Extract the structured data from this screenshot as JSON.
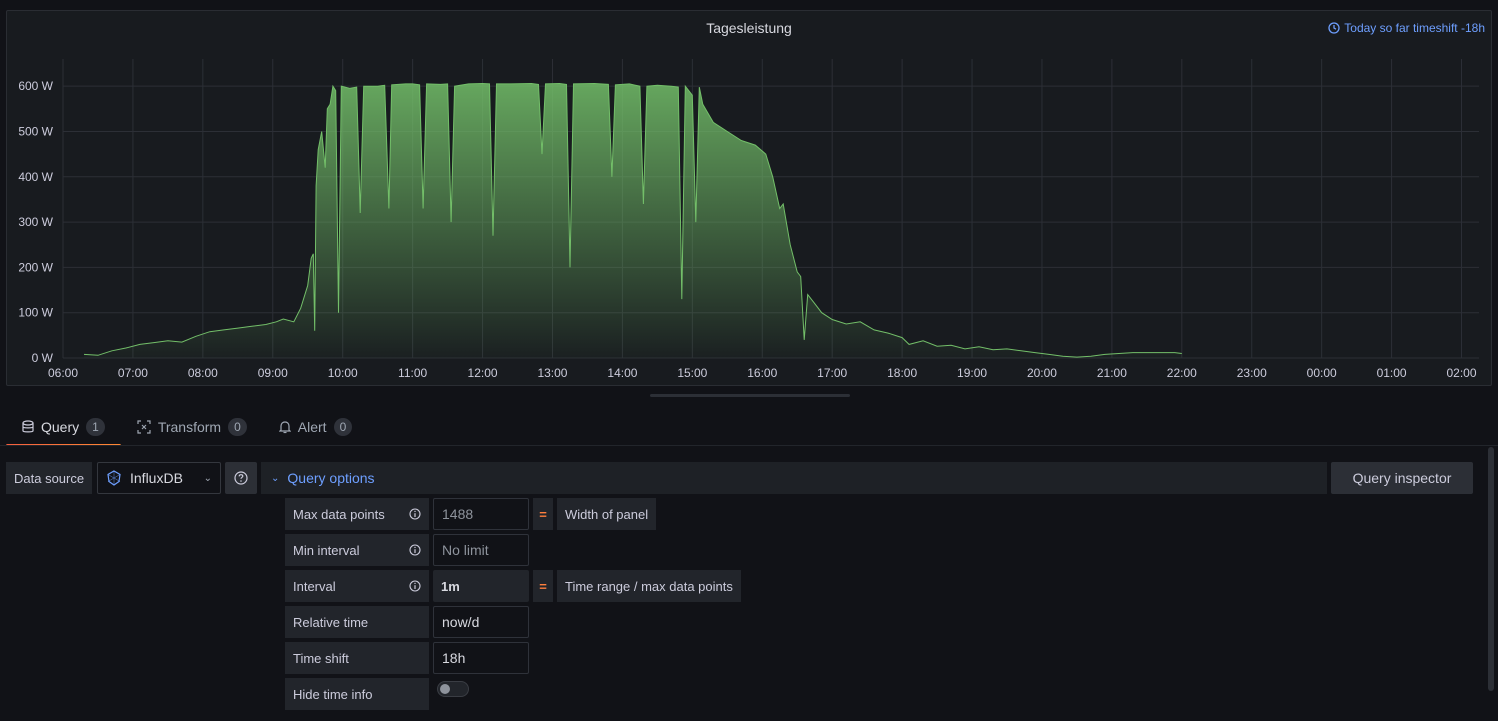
{
  "panel": {
    "title": "Tagesleistung",
    "time_info": "Today so far timeshift -18h"
  },
  "chart_data": {
    "type": "area",
    "title": "Tagesleistung",
    "xlabel": "",
    "ylabel": "",
    "x_ticks": [
      "06:00",
      "07:00",
      "08:00",
      "09:00",
      "10:00",
      "11:00",
      "12:00",
      "13:00",
      "14:00",
      "15:00",
      "16:00",
      "17:00",
      "18:00",
      "19:00",
      "20:00",
      "21:00",
      "22:00",
      "23:00",
      "00:00",
      "01:00",
      "02:00"
    ],
    "y_ticks": [
      "0 W",
      "100 W",
      "200 W",
      "300 W",
      "400 W",
      "500 W",
      "600 W"
    ],
    "ylim": [
      0,
      660
    ],
    "xlim_hours": [
      6.0,
      26.25
    ],
    "grid": true,
    "legend": "none",
    "series_color": "#73bf69",
    "series": [
      {
        "values": [
          [
            6.3,
            8
          ],
          [
            6.5,
            6
          ],
          [
            6.7,
            16
          ],
          [
            6.9,
            22
          ],
          [
            7.1,
            30
          ],
          [
            7.3,
            34
          ],
          [
            7.5,
            38
          ],
          [
            7.7,
            35
          ],
          [
            7.9,
            48
          ],
          [
            8.1,
            58
          ],
          [
            8.3,
            62
          ],
          [
            8.5,
            66
          ],
          [
            8.7,
            70
          ],
          [
            8.9,
            74
          ],
          [
            9.05,
            80
          ],
          [
            9.15,
            86
          ],
          [
            9.3,
            80
          ],
          [
            9.4,
            110
          ],
          [
            9.5,
            160
          ],
          [
            9.55,
            220
          ],
          [
            9.58,
            230
          ],
          [
            9.6,
            60
          ],
          [
            9.62,
            380
          ],
          [
            9.65,
            460
          ],
          [
            9.7,
            500
          ],
          [
            9.75,
            420
          ],
          [
            9.78,
            550
          ],
          [
            9.82,
            560
          ],
          [
            9.86,
            600
          ],
          [
            9.9,
            590
          ],
          [
            9.94,
            100
          ],
          [
            9.98,
            600
          ],
          [
            10.1,
            595
          ],
          [
            10.2,
            598
          ],
          [
            10.25,
            320
          ],
          [
            10.3,
            600
          ],
          [
            10.5,
            600
          ],
          [
            10.6,
            602
          ],
          [
            10.66,
            330
          ],
          [
            10.7,
            603
          ],
          [
            10.9,
            605
          ],
          [
            11.0,
            605
          ],
          [
            11.1,
            603
          ],
          [
            11.15,
            330
          ],
          [
            11.2,
            605
          ],
          [
            11.4,
            604
          ],
          [
            11.5,
            605
          ],
          [
            11.55,
            300
          ],
          [
            11.6,
            600
          ],
          [
            11.8,
            605
          ],
          [
            12.0,
            606
          ],
          [
            12.1,
            605
          ],
          [
            12.15,
            270
          ],
          [
            12.2,
            605
          ],
          [
            12.4,
            605
          ],
          [
            12.7,
            606
          ],
          [
            12.8,
            604
          ],
          [
            12.85,
            450
          ],
          [
            12.9,
            605
          ],
          [
            13.1,
            606
          ],
          [
            13.2,
            604
          ],
          [
            13.25,
            200
          ],
          [
            13.3,
            605
          ],
          [
            13.6,
            606
          ],
          [
            13.8,
            604
          ],
          [
            13.85,
            400
          ],
          [
            13.9,
            603
          ],
          [
            14.1,
            605
          ],
          [
            14.25,
            600
          ],
          [
            14.3,
            340
          ],
          [
            14.35,
            600
          ],
          [
            14.5,
            602
          ],
          [
            14.7,
            600
          ],
          [
            14.8,
            598
          ],
          [
            14.85,
            130
          ],
          [
            14.9,
            600
          ],
          [
            15.0,
            580
          ],
          [
            15.05,
            300
          ],
          [
            15.1,
            598
          ],
          [
            15.15,
            560
          ],
          [
            15.3,
            520
          ],
          [
            15.5,
            500
          ],
          [
            15.7,
            480
          ],
          [
            15.9,
            470
          ],
          [
            16.05,
            450
          ],
          [
            16.15,
            400
          ],
          [
            16.25,
            330
          ],
          [
            16.3,
            340
          ],
          [
            16.4,
            250
          ],
          [
            16.5,
            190
          ],
          [
            16.55,
            180
          ],
          [
            16.6,
            40
          ],
          [
            16.65,
            140
          ],
          [
            16.75,
            120
          ],
          [
            16.85,
            100
          ],
          [
            17.0,
            85
          ],
          [
            17.2,
            75
          ],
          [
            17.4,
            80
          ],
          [
            17.6,
            62
          ],
          [
            17.8,
            55
          ],
          [
            18.0,
            45
          ],
          [
            18.1,
            30
          ],
          [
            18.3,
            38
          ],
          [
            18.5,
            26
          ],
          [
            18.7,
            28
          ],
          [
            18.9,
            20
          ],
          [
            19.1,
            25
          ],
          [
            19.3,
            18
          ],
          [
            19.5,
            20
          ],
          [
            19.7,
            16
          ],
          [
            19.9,
            12
          ],
          [
            20.1,
            8
          ],
          [
            20.3,
            4
          ],
          [
            20.5,
            2
          ],
          [
            20.7,
            4
          ],
          [
            20.9,
            8
          ],
          [
            21.1,
            10
          ],
          [
            21.3,
            12
          ],
          [
            21.5,
            12
          ],
          [
            21.7,
            12
          ],
          [
            21.9,
            12
          ],
          [
            22.0,
            10
          ]
        ]
      }
    ]
  },
  "tabs": [
    {
      "label": "Query",
      "count": "1"
    },
    {
      "label": "Transform",
      "count": "0"
    },
    {
      "label": "Alert",
      "count": "0"
    }
  ],
  "datasource": {
    "label": "Data source",
    "selected": "InfluxDB"
  },
  "query_options": {
    "title": "Query options",
    "inspector_label": "Query inspector",
    "max_data_points": {
      "label": "Max data points",
      "placeholder": "1488",
      "note": "Width of panel"
    },
    "min_interval": {
      "label": "Min interval",
      "placeholder": "No limit"
    },
    "interval": {
      "label": "Interval",
      "value": "1m",
      "note": "Time range / max data points"
    },
    "relative_time": {
      "label": "Relative time",
      "value": "now/d"
    },
    "time_shift": {
      "label": "Time shift",
      "value": "18h"
    },
    "hide_time_info": {
      "label": "Hide time info",
      "enabled": false
    }
  },
  "equals_sign": "="
}
